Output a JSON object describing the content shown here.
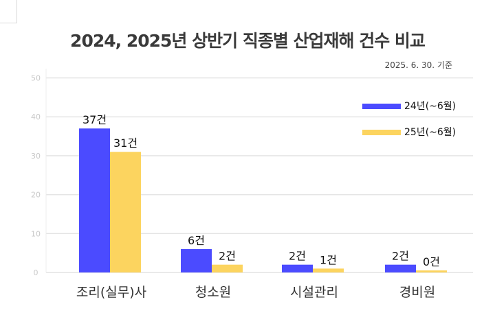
{
  "chart_data": {
    "type": "bar",
    "title": "2024, 2025년 상반기 직종별 산업재해 건수 비교",
    "subtitle": "2025. 6. 30. 기준",
    "categories": [
      "조리(실무)사",
      "청소원",
      "시설관리",
      "경비원"
    ],
    "series": [
      {
        "name": "24년(~6월)",
        "values": [
          37,
          6,
          2,
          2
        ],
        "labels": [
          "37건",
          "6건",
          "2건",
          "2건"
        ],
        "color": "#4b4bff"
      },
      {
        "name": "25년(~6월)",
        "values": [
          31,
          2,
          1,
          0
        ],
        "labels": [
          "31건",
          "2건",
          "1건",
          "0건"
        ],
        "color": "#fcd45f"
      }
    ],
    "yticks": [
      "0",
      "10",
      "20",
      "30",
      "40",
      "50"
    ],
    "ylim": [
      0,
      50
    ],
    "grid": true,
    "legend": "top-right"
  }
}
